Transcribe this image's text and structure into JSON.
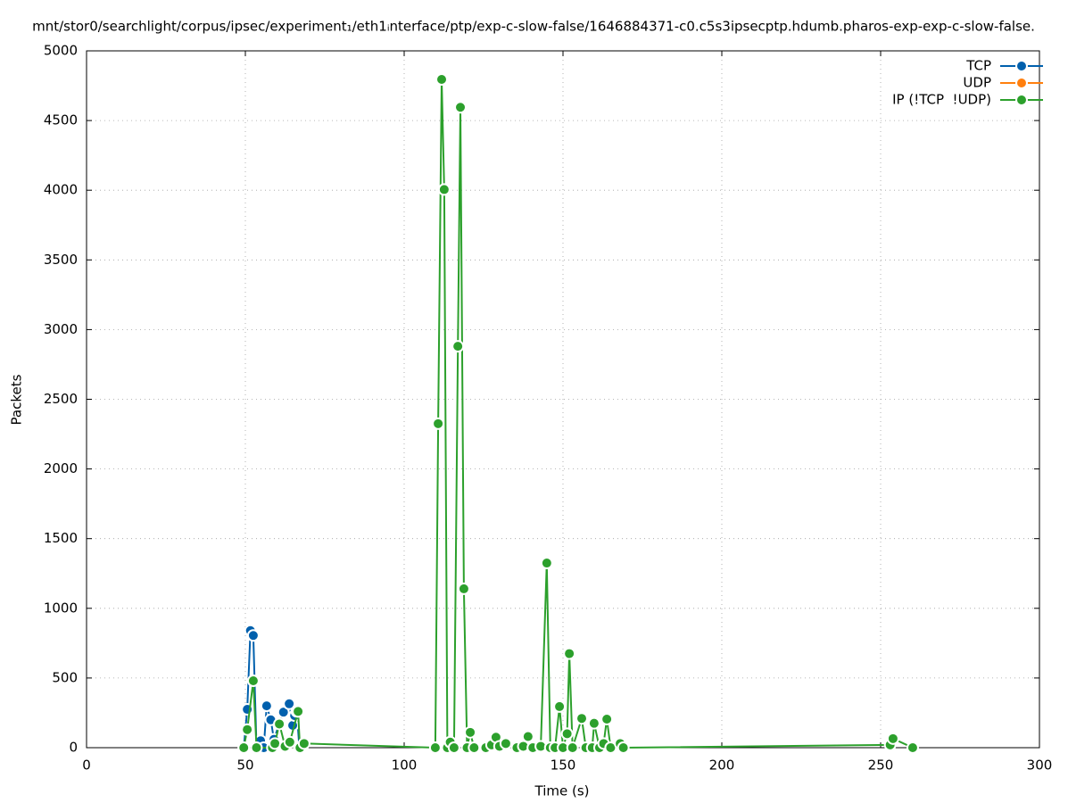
{
  "chart_data": {
    "type": "line",
    "title": "mnt/stor0/searchlight/corpus/ipsec/experiment₁/eth1ᵢnterface/ptp/exp-c-slow-false/1646884371-c0.c5s3ipsecptp.hdumb.pharos-exp-exp-c-slow-false.",
    "x_label": "Time (s)",
    "y_label": "Packets",
    "xlim": [
      0,
      300
    ],
    "xticks": [
      0,
      50,
      100,
      150,
      200,
      250,
      300
    ],
    "ylim": [
      0,
      5000
    ],
    "yticks": [
      0,
      500,
      1000,
      1500,
      2000,
      2500,
      3000,
      3500,
      4000,
      4500,
      5000
    ],
    "grid": true,
    "legend": "top-right",
    "series": [
      {
        "name": "TCP",
        "color": "#0060ad",
        "x": [
          49.5,
          50.6,
          51.6,
          52.5,
          53.5,
          54.8,
          55.8,
          56.7,
          58,
          59,
          62,
          63.8,
          64.9,
          65.5,
          66.2,
          67
        ],
        "values": [
          0,
          275,
          840,
          805,
          0,
          50,
          0,
          300,
          200,
          60,
          255,
          315,
          160,
          230,
          260,
          0
        ]
      },
      {
        "name": "UDP",
        "color": "#ff7f0e",
        "x": [],
        "values": []
      },
      {
        "name": "IP (!TCP  !UDP)",
        "color": "#2ca02c",
        "x": [
          49.5,
          50.6,
          52.5,
          53.5,
          58.5,
          59.3,
          60.7,
          62.5,
          64,
          66.6,
          67.2,
          68.5,
          109.8,
          110.7,
          111.8,
          112.6,
          113.6,
          114.5,
          115.7,
          116.9,
          117.7,
          118.8,
          119.8,
          120.8,
          122,
          125.7,
          127.5,
          128.9,
          130,
          132,
          135.5,
          137.5,
          139,
          140.5,
          143,
          144.9,
          146,
          147.5,
          148.9,
          150,
          151.3,
          152,
          153,
          155.9,
          157.2,
          159.2,
          159.8,
          161.5,
          162.8,
          163.8,
          165,
          168,
          169,
          253,
          253.9,
          260.1
        ],
        "values": [
          0,
          130,
          480,
          0,
          0,
          30,
          170,
          10,
          40,
          260,
          0,
          30,
          0,
          2325,
          4795,
          4005,
          0,
          40,
          0,
          2880,
          4595,
          1140,
          0,
          110,
          0,
          0,
          20,
          75,
          10,
          30,
          0,
          10,
          80,
          0,
          10,
          1325,
          0,
          0,
          295,
          0,
          100,
          675,
          0,
          210,
          0,
          0,
          175,
          0,
          30,
          205,
          0,
          30,
          0,
          20,
          65,
          0
        ]
      }
    ]
  }
}
